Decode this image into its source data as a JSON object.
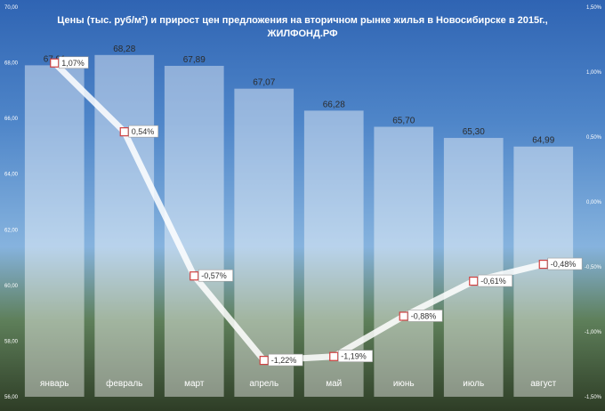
{
  "title_line1": "Цены (тыс. руб/м²) и прирост цен предложения на вторичном рынке жилья в Новосибирске в 2015г.,",
  "title_line2": "ЖИЛФОНД.РФ",
  "chart_data": {
    "type": "bar",
    "categories": [
      "январь",
      "февраль",
      "март",
      "апрель",
      "май",
      "июнь",
      "июль",
      "август"
    ],
    "bar_series": {
      "values": [
        67.91,
        68.28,
        67.89,
        67.07,
        66.28,
        65.7,
        65.3,
        64.99
      ],
      "labels": [
        "67,91",
        "68,28",
        "67,89",
        "67,07",
        "66,28",
        "65,70",
        "65,30",
        "64,99"
      ]
    },
    "line_series": {
      "values": [
        1.07,
        0.54,
        -0.57,
        -1.22,
        -1.19,
        -0.88,
        -0.61,
        -0.48
      ],
      "labels": [
        "1,07%",
        "0,54%",
        "-0,57%",
        "-1,22%",
        "-1,19%",
        "-0,88%",
        "-0,61%",
        "-0,48%"
      ]
    },
    "y_left": {
      "ylim": [
        56,
        70
      ],
      "ticks": [
        70,
        68,
        66,
        64,
        62,
        60,
        58,
        56
      ],
      "tick_labels": [
        "70,00",
        "68,00",
        "66,00",
        "64,00",
        "62,00",
        "60,00",
        "58,00",
        "56,00"
      ]
    },
    "y_right": {
      "ylim": [
        -1.5,
        1.5
      ],
      "ticks": [
        1.5,
        1.0,
        0.5,
        0.0,
        -0.5,
        -1.0,
        -1.5
      ],
      "tick_labels": [
        "1,50%",
        "1,00%",
        "0,50%",
        "0,00%",
        "-0,50%",
        "-1,00%",
        "-1,50%"
      ]
    },
    "grid": false,
    "legend": "none"
  },
  "colors": {
    "bar_fill": "#ffffff",
    "line": "#ffffff",
    "marker_stroke": "#d04040"
  }
}
